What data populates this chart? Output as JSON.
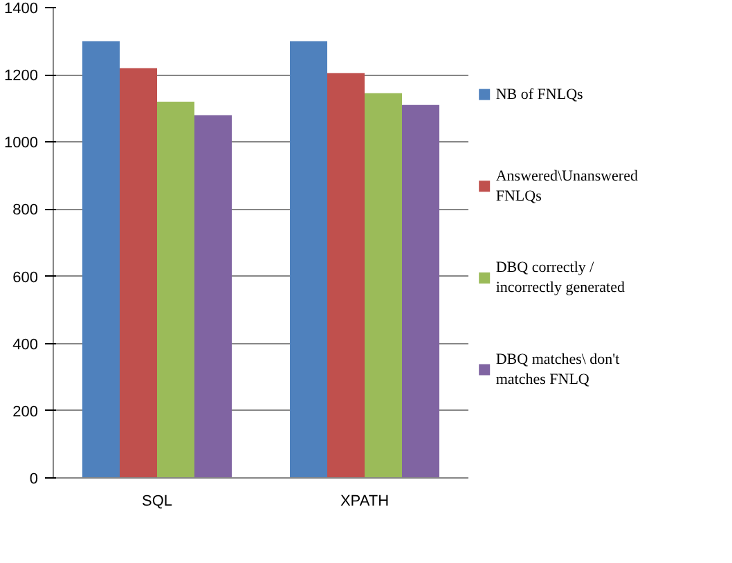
{
  "chart_data": {
    "type": "bar",
    "categories": [
      "SQL",
      "XPATH"
    ],
    "series": [
      {
        "name": "NB of FNLQs",
        "color": "#4f81bd",
        "values": [
          1300,
          1300
        ]
      },
      {
        "name": "Answered\\Unanswered FNLQs",
        "color": "#c0504d",
        "values": [
          1220,
          1205
        ]
      },
      {
        "name": "DBQ correctly / incorrectly generated",
        "color": "#9bbb59",
        "values": [
          1120,
          1145
        ]
      },
      {
        "name": "DBQ matches\\ don't matches FNLQ",
        "color": "#8064a2",
        "values": [
          1080,
          1110
        ]
      }
    ],
    "ylim": [
      0,
      1400
    ],
    "yticks": [
      0,
      200,
      400,
      600,
      800,
      1000,
      1200,
      1400
    ],
    "grid": "y",
    "legend": "right"
  }
}
